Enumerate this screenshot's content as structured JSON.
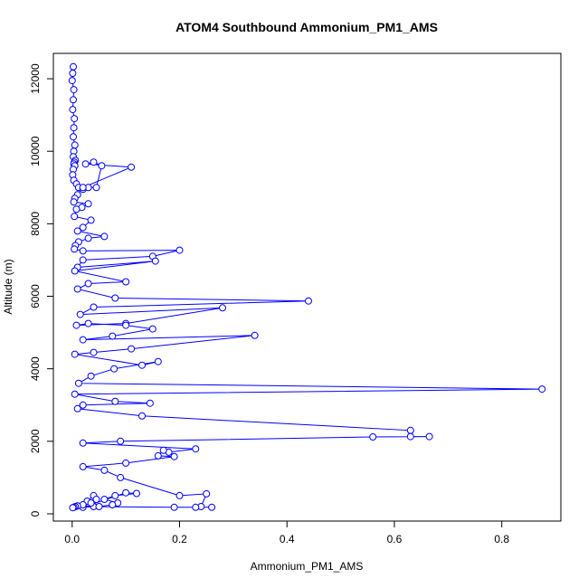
{
  "chart_data": {
    "type": "line",
    "title": "ATOM4 Southbound Ammonium_PM1_AMS",
    "xlabel": "Ammonium_PM1_AMS",
    "ylabel": "Altitude (m)",
    "xlim": [
      -0.035,
      0.91
    ],
    "ylim": [
      -200,
      12700
    ],
    "xticks": [
      0.0,
      0.2,
      0.4,
      0.6,
      0.8
    ],
    "xtick_labels": [
      "0.0",
      "0.2",
      "0.4",
      "0.6",
      "0.8"
    ],
    "yticks": [
      0,
      2000,
      4000,
      6000,
      8000,
      10000,
      12000
    ],
    "ytick_labels": [
      "0",
      "2000",
      "4000",
      "6000",
      "8000",
      "10000",
      "12000"
    ],
    "grid": false,
    "marker": "open-circle",
    "color": "#0000ff",
    "series": [
      {
        "x": [
          0.002,
          0.001,
          0.0,
          0.003,
          0.002,
          0.001,
          0.004,
          0.003,
          0.002,
          0.005,
          0.003,
          0.002,
          0.006,
          0.004,
          0.003,
          0.005,
          0.002,
          0.001,
          0.003,
          0.008,
          0.012,
          0.02,
          0.03,
          0.045,
          0.055,
          0.04,
          0.025,
          0.11,
          0.02,
          0.01,
          0.005,
          0.003,
          0.03,
          0.018,
          0.008,
          0.004,
          0.035,
          0.02,
          0.01,
          0.06,
          0.03,
          0.012,
          0.006,
          0.004,
          0.02,
          0.2,
          0.15,
          0.02,
          0.01,
          0.155,
          0.005,
          0.1,
          0.03,
          0.01,
          0.08,
          0.44,
          0.04,
          0.015,
          0.28,
          0.1,
          0.008,
          0.03,
          0.1,
          0.15,
          0.075,
          0.02,
          0.34,
          0.11,
          0.04,
          0.005,
          0.13,
          0.16,
          0.078,
          0.035,
          0.012,
          0.875,
          0.005,
          0.08,
          0.145,
          0.02,
          0.01,
          0.13,
          0.63,
          0.63,
          0.665,
          0.56,
          0.09,
          0.02,
          0.23,
          0.18,
          0.17,
          0.16,
          0.19,
          0.1,
          0.02,
          0.06,
          0.09,
          0.2,
          0.25,
          0.24,
          0.23,
          0.26,
          0.19,
          0.04,
          0.02,
          0.1,
          0.12,
          0.08,
          0.06,
          0.085,
          0.075,
          0.05,
          0.03,
          0.028,
          0.04,
          0.045,
          0.035,
          0.02,
          0.01,
          0.006,
          0.003,
          0.001
        ],
        "y": [
          12330,
          12150,
          11950,
          11700,
          11420,
          11150,
          10900,
          10650,
          10400,
          10170,
          10000,
          9850,
          9750,
          9700,
          9650,
          9600,
          9500,
          9350,
          9200,
          9100,
          9000,
          8950,
          9000,
          9000,
          9600,
          9700,
          9650,
          9560,
          9000,
          8800,
          8700,
          8600,
          8550,
          8450,
          8400,
          8200,
          8100,
          7900,
          7800,
          7650,
          7600,
          7500,
          7400,
          7300,
          7250,
          7270,
          7100,
          7000,
          6800,
          6970,
          6700,
          6400,
          6350,
          6200,
          5950,
          5870,
          5700,
          5500,
          5680,
          5250,
          5200,
          5250,
          5200,
          5100,
          4900,
          4800,
          4920,
          4550,
          4450,
          4400,
          4100,
          4200,
          4000,
          3800,
          3600,
          3440,
          3300,
          3100,
          3050,
          3000,
          2900,
          2700,
          2300,
          2130,
          2130,
          2120,
          2000,
          1950,
          1790,
          1700,
          1750,
          1600,
          1580,
          1400,
          1300,
          1200,
          1000,
          500,
          550,
          200,
          180,
          180,
          180,
          200,
          180,
          580,
          560,
          500,
          400,
          300,
          250,
          200,
          300,
          350,
          500,
          400,
          300,
          250,
          220,
          200,
          180,
          170
        ]
      }
    ]
  }
}
